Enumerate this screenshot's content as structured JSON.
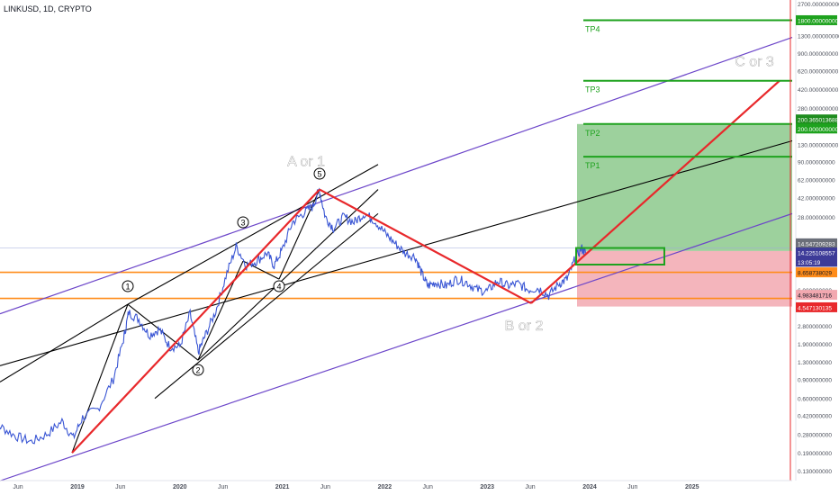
{
  "header": {
    "symbol_line": "LINKUSD, 1D, CRYPTO"
  },
  "colors": {
    "price": "#3a56d4",
    "red_line": "#e8282b",
    "purple": "#6c46c9",
    "black": "#000000",
    "orange": "#ff8c1a",
    "green": "#1ea21e",
    "profit_zone": "#8cc98c",
    "loss_zone": "#f2a8b0",
    "axis_red": "#e8282b",
    "annot_gray": "#ffffff"
  },
  "chart_data": {
    "type": "line",
    "scale": "log",
    "price_axis_ticks": [
      "2700.000000000",
      "1800.000000000",
      "1300.000000000",
      "900.000000000",
      "620.000000000",
      "420.000000000",
      "280.000000000",
      "200.365013688",
      "200.000000000",
      "130.000000000",
      "90.000000000",
      "62.000000000",
      "42.000000000",
      "28.000000000",
      "14.547209283",
      "14.225108557",
      "13:05:19",
      "8.658738029",
      "6.000000000",
      "4.983481716",
      "4.547130135",
      "2.800000000",
      "1.900000000",
      "1.300000000",
      "0.900000000",
      "0.600000000",
      "0.420000000",
      "0.280000000",
      "0.190000000",
      "0.130000000"
    ],
    "price_tick_values": [
      2700,
      1800,
      1300,
      900,
      620,
      420,
      280,
      200.365,
      200,
      130,
      90,
      62,
      42,
      28,
      14.547,
      14.225,
      13.6,
      8.6587,
      6,
      4.9835,
      4.5471,
      2.8,
      1.9,
      1.3,
      0.9,
      0.6,
      0.42,
      0.28,
      0.19,
      0.13
    ],
    "time_axis_labels": [
      "Jun",
      "2019",
      "Jun",
      "2020",
      "Jun",
      "2021",
      "Jun",
      "2022",
      "Jun",
      "2023",
      "Jun",
      "2024",
      "Jun",
      "2025"
    ],
    "time_label_values": [
      2018.42,
      2019.0,
      2019.42,
      2020.0,
      2020.42,
      2021.0,
      2021.42,
      2022.0,
      2022.42,
      2023.0,
      2023.42,
      2024.0,
      2024.42,
      2025.0
    ],
    "series": [
      {
        "values_xy": [
          [
            2018.1,
            0.4
          ],
          [
            2018.25,
            0.33
          ],
          [
            2018.4,
            0.27
          ],
          [
            2018.55,
            0.24
          ],
          [
            2018.7,
            0.28
          ],
          [
            2018.85,
            0.37
          ],
          [
            2018.96,
            0.26
          ],
          [
            2019.05,
            0.4
          ],
          [
            2019.2,
            0.48
          ],
          [
            2019.35,
            0.9
          ],
          [
            2019.45,
            2.1
          ],
          [
            2019.5,
            3.7
          ],
          [
            2019.6,
            3.2
          ],
          [
            2019.7,
            2.3
          ],
          [
            2019.8,
            2.6
          ],
          [
            2019.9,
            1.8
          ],
          [
            2020.0,
            1.8
          ],
          [
            2020.1,
            3.6
          ],
          [
            2020.18,
            1.6
          ],
          [
            2020.25,
            2.3
          ],
          [
            2020.35,
            3.8
          ],
          [
            2020.45,
            8
          ],
          [
            2020.55,
            15
          ],
          [
            2020.65,
            10
          ],
          [
            2020.75,
            11
          ],
          [
            2020.85,
            13
          ],
          [
            2020.92,
            10
          ],
          [
            2021.0,
            14
          ],
          [
            2021.1,
            25
          ],
          [
            2021.2,
            30
          ],
          [
            2021.3,
            35
          ],
          [
            2021.36,
            50
          ],
          [
            2021.42,
            28
          ],
          [
            2021.5,
            22
          ],
          [
            2021.6,
            28
          ],
          [
            2021.7,
            25
          ],
          [
            2021.8,
            30
          ],
          [
            2021.9,
            26
          ],
          [
            2022.0,
            20
          ],
          [
            2022.1,
            16
          ],
          [
            2022.2,
            13
          ],
          [
            2022.3,
            12
          ],
          [
            2022.36,
            8.5
          ],
          [
            2022.42,
            6.5
          ],
          [
            2022.5,
            7
          ],
          [
            2022.6,
            6.5
          ],
          [
            2022.7,
            7.5
          ],
          [
            2022.8,
            7
          ],
          [
            2022.9,
            6
          ],
          [
            2023.0,
            5.8
          ],
          [
            2023.1,
            7.2
          ],
          [
            2023.2,
            6.5
          ],
          [
            2023.3,
            6.8
          ],
          [
            2023.4,
            6.0
          ],
          [
            2023.5,
            6.2
          ],
          [
            2023.6,
            5.3
          ],
          [
            2023.7,
            6.8
          ],
          [
            2023.78,
            7.5
          ],
          [
            2023.85,
            11
          ],
          [
            2023.92,
            14.5
          ],
          [
            2023.96,
            13
          ]
        ]
      }
    ],
    "annotations": {
      "wave_labels": [
        "A or 1",
        "B or 2",
        "C or 3"
      ],
      "wave_points": [
        "1",
        "2",
        "3",
        "4",
        "5"
      ],
      "targets": [
        {
          "label": "TP4",
          "price_label": "1800.000000000"
        },
        {
          "label": "TP3",
          "price_label": "500.000000000"
        },
        {
          "label": "TP2",
          "price_label": "200.000000000"
        },
        {
          "label": "TP1",
          "price_label": "100.000000000"
        }
      ],
      "target_values": [
        1800,
        500,
        200,
        100
      ],
      "support_levels": [
        8.6587,
        4.9835
      ],
      "entry_level": 13.6
    }
  }
}
